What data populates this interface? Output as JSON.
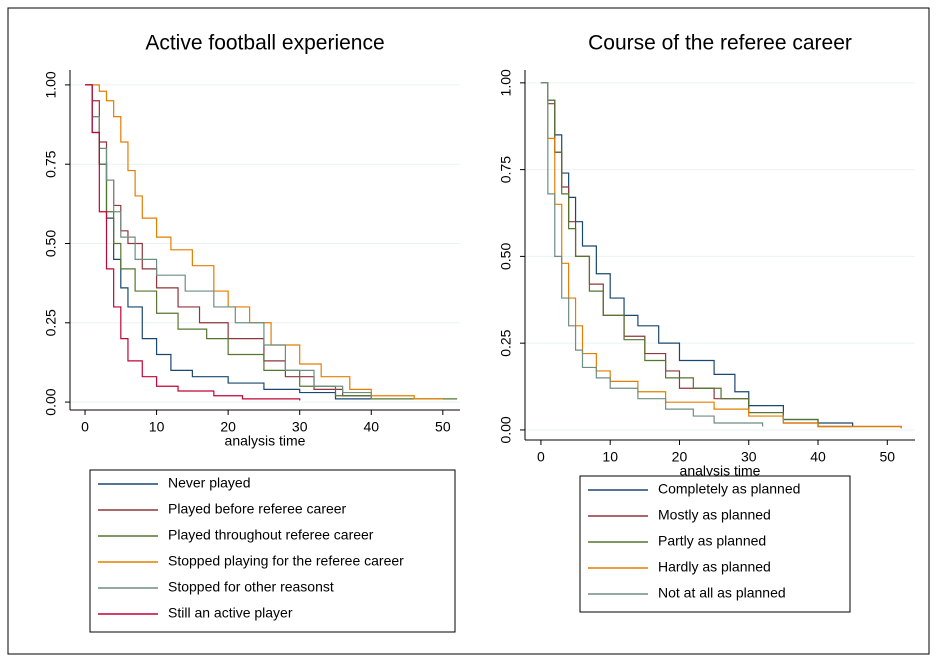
{
  "chart_data": [
    {
      "type": "step",
      "title": "Active football experience",
      "xlabel": "analysis time",
      "xlim": [
        -2.1,
        52.4
      ],
      "ylim": [
        -0.025,
        1.047
      ],
      "xticks": [
        0,
        10,
        20,
        30,
        40,
        50
      ],
      "yticks": [
        {
          "value": 0,
          "label": "0.00"
        },
        {
          "value": 0.25,
          "label": "0.25"
        },
        {
          "value": 0.5,
          "label": "0.50"
        },
        {
          "value": 0.75,
          "label": "0.75"
        },
        {
          "value": 1,
          "label": "1.00"
        }
      ],
      "grid": true,
      "legend": "bottom",
      "series": [
        {
          "name": "Never played",
          "color": "#1a476f",
          "x": [
            0,
            1,
            2,
            3,
            4,
            5,
            6,
            8,
            10,
            12,
            15,
            20,
            25,
            30,
            35,
            40
          ],
          "values": [
            1,
            0.85,
            0.75,
            0.58,
            0.45,
            0.36,
            0.3,
            0.2,
            0.15,
            0.1,
            0.08,
            0.06,
            0.04,
            0.03,
            0.01,
            0.01
          ]
        },
        {
          "name": "Played before referee career",
          "color": "#90353b",
          "x": [
            0,
            1,
            2,
            3,
            4,
            5,
            6,
            8,
            10,
            13,
            16,
            20,
            25,
            28,
            32,
            36,
            40
          ],
          "values": [
            1,
            0.95,
            0.82,
            0.7,
            0.62,
            0.54,
            0.5,
            0.42,
            0.36,
            0.3,
            0.25,
            0.2,
            0.13,
            0.08,
            0.04,
            0.02,
            0.01
          ]
        },
        {
          "name": "Played throughout referee career",
          "color": "#55752f",
          "x": [
            0,
            1,
            2,
            3,
            4,
            5,
            7,
            10,
            13,
            17,
            20,
            25,
            30,
            35,
            40,
            52
          ],
          "values": [
            1,
            0.9,
            0.75,
            0.6,
            0.5,
            0.42,
            0.35,
            0.28,
            0.23,
            0.2,
            0.15,
            0.1,
            0.05,
            0.02,
            0.01,
            0.01
          ]
        },
        {
          "name": "Stopped playing for the referee career",
          "color": "#e37e00",
          "x": [
            0,
            2,
            3,
            4,
            5,
            6,
            7,
            8,
            10,
            12,
            15,
            18,
            20,
            23,
            26,
            30,
            33,
            37,
            40,
            46,
            50
          ],
          "values": [
            1,
            0.98,
            0.95,
            0.9,
            0.82,
            0.73,
            0.65,
            0.58,
            0.52,
            0.48,
            0.43,
            0.35,
            0.3,
            0.25,
            0.18,
            0.12,
            0.08,
            0.04,
            0.02,
            0.01,
            0.01
          ]
        },
        {
          "name": "Stopped for other reasonst",
          "color": "#6e8e84",
          "x": [
            0,
            1,
            2,
            3,
            4,
            5,
            7,
            10,
            14,
            18,
            21,
            25,
            28,
            32,
            36,
            40
          ],
          "values": [
            1,
            0.9,
            0.8,
            0.7,
            0.6,
            0.52,
            0.45,
            0.4,
            0.35,
            0.3,
            0.25,
            0.18,
            0.1,
            0.05,
            0.03,
            0.01
          ]
        },
        {
          "name": "Still an active player",
          "color": "#c10534",
          "x": [
            0,
            1,
            2,
            3,
            4,
            5,
            6,
            8,
            10,
            13,
            18,
            22,
            30
          ],
          "values": [
            1,
            0.85,
            0.6,
            0.42,
            0.3,
            0.2,
            0.13,
            0.08,
            0.05,
            0.035,
            0.02,
            0.01,
            0.005
          ]
        }
      ]
    },
    {
      "type": "step",
      "title": "Course of the referee career",
      "xlabel": "analysis time",
      "xlim": [
        -2.3,
        54
      ],
      "ylim": [
        -0.029,
        1.037
      ],
      "xticks": [
        0,
        10,
        20,
        30,
        40,
        50
      ],
      "yticks": [
        {
          "value": 0,
          "label": "0.00"
        },
        {
          "value": 0.25,
          "label": "0.25"
        },
        {
          "value": 0.5,
          "label": "0.50"
        },
        {
          "value": 0.75,
          "label": "0.75"
        },
        {
          "value": 1,
          "label": "1.00"
        }
      ],
      "grid": true,
      "legend": "bottom",
      "series": [
        {
          "name": "Completely as planned",
          "color": "#1a476f",
          "x": [
            0,
            1,
            2,
            3,
            4,
            5,
            6,
            8,
            10,
            12,
            14,
            17,
            20,
            25,
            28,
            30,
            35,
            40,
            45
          ],
          "values": [
            1,
            0.95,
            0.85,
            0.74,
            0.67,
            0.6,
            0.53,
            0.45,
            0.38,
            0.33,
            0.3,
            0.25,
            0.2,
            0.16,
            0.11,
            0.07,
            0.03,
            0.02,
            0.01
          ]
        },
        {
          "name": "Mostly as planned",
          "color": "#90353b",
          "x": [
            0,
            1,
            2,
            3,
            4,
            5,
            7,
            9,
            12,
            15,
            18,
            20,
            25,
            30,
            35,
            40,
            52
          ],
          "values": [
            1,
            0.94,
            0.8,
            0.7,
            0.6,
            0.5,
            0.42,
            0.33,
            0.27,
            0.22,
            0.17,
            0.12,
            0.09,
            0.05,
            0.02,
            0.01,
            0.005
          ]
        },
        {
          "name": "Partly as planned",
          "color": "#55752f",
          "x": [
            0,
            1,
            2,
            3,
            4,
            5,
            7,
            9,
            12,
            15,
            18,
            22,
            26,
            30,
            35,
            40,
            45
          ],
          "values": [
            1,
            0.95,
            0.8,
            0.68,
            0.58,
            0.5,
            0.4,
            0.33,
            0.26,
            0.2,
            0.15,
            0.12,
            0.09,
            0.05,
            0.03,
            0.01,
            0.01
          ]
        },
        {
          "name": "Hardly as planned",
          "color": "#e37e00",
          "x": [
            0,
            1,
            2,
            3,
            4,
            5,
            6,
            8,
            10,
            14,
            18,
            25,
            30,
            35,
            40,
            52
          ],
          "values": [
            1,
            0.84,
            0.65,
            0.48,
            0.38,
            0.3,
            0.22,
            0.17,
            0.14,
            0.11,
            0.08,
            0.06,
            0.04,
            0.02,
            0.01,
            0.005
          ]
        },
        {
          "name": "Not at all as planned",
          "color": "#6e8e84",
          "x": [
            0,
            1,
            2,
            3,
            4,
            5,
            6,
            8,
            10,
            14,
            18,
            22,
            25,
            32
          ],
          "values": [
            1,
            0.68,
            0.5,
            0.38,
            0.3,
            0.23,
            0.18,
            0.15,
            0.12,
            0.09,
            0.06,
            0.04,
            0.02,
            0.01
          ]
        }
      ]
    }
  ]
}
